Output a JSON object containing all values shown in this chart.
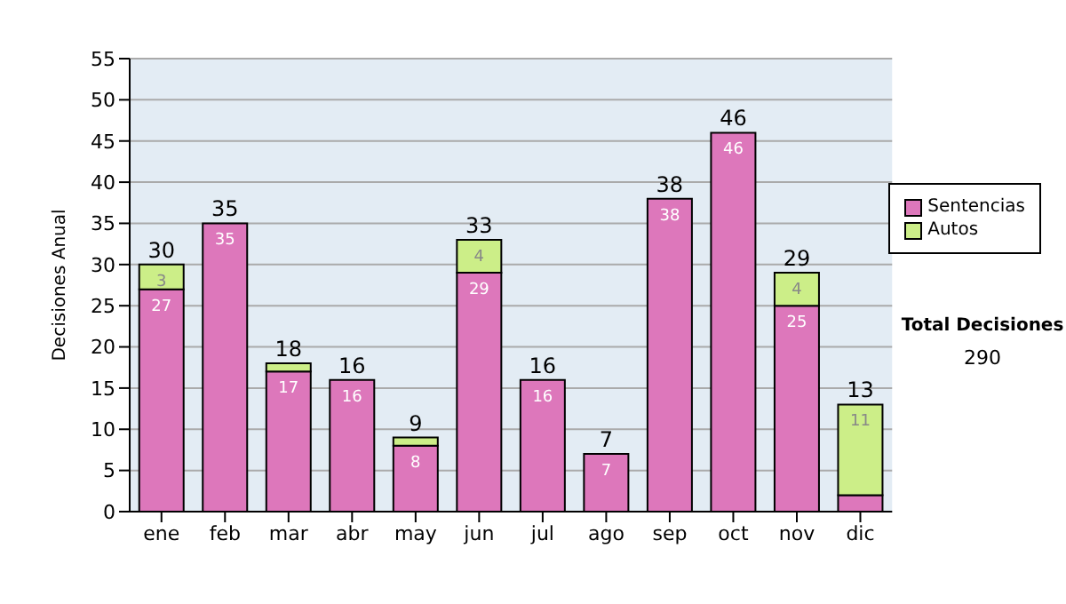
{
  "chart_data": {
    "type": "bar",
    "stacked": true,
    "ylabel": "Decisiones Anual",
    "categories": [
      "ene",
      "feb",
      "mar",
      "abr",
      "may",
      "jun",
      "jul",
      "ago",
      "sep",
      "oct",
      "nov",
      "dic"
    ],
    "series": [
      {
        "name": "Sentencias",
        "color": "#dd77bb",
        "values": [
          27,
          35,
          17,
          16,
          8,
          29,
          16,
          7,
          38,
          46,
          25,
          2
        ],
        "value_labels": [
          "27",
          "35",
          "17",
          "16",
          "8",
          "29",
          "16",
          "7",
          "38",
          "46",
          "25",
          null
        ]
      },
      {
        "name": "Autos",
        "color": "#ccee88",
        "values": [
          3,
          null,
          1,
          null,
          1,
          4,
          null,
          null,
          null,
          null,
          4,
          11
        ],
        "value_labels": [
          "3",
          null,
          null,
          null,
          null,
          "4",
          null,
          null,
          null,
          null,
          "4",
          "11"
        ]
      }
    ],
    "totals": [
      "30",
      "35",
      "18",
      "16",
      "9",
      "33",
      "16",
      "7",
      "38",
      "46",
      "29",
      "13"
    ],
    "ylim": [
      0,
      55
    ],
    "yticks": [
      0,
      5,
      10,
      15,
      20,
      25,
      30,
      35,
      40,
      45,
      50,
      55
    ],
    "grid": "y",
    "legend": "right",
    "annotations": [
      "Total Decisiones",
      "290"
    ]
  }
}
